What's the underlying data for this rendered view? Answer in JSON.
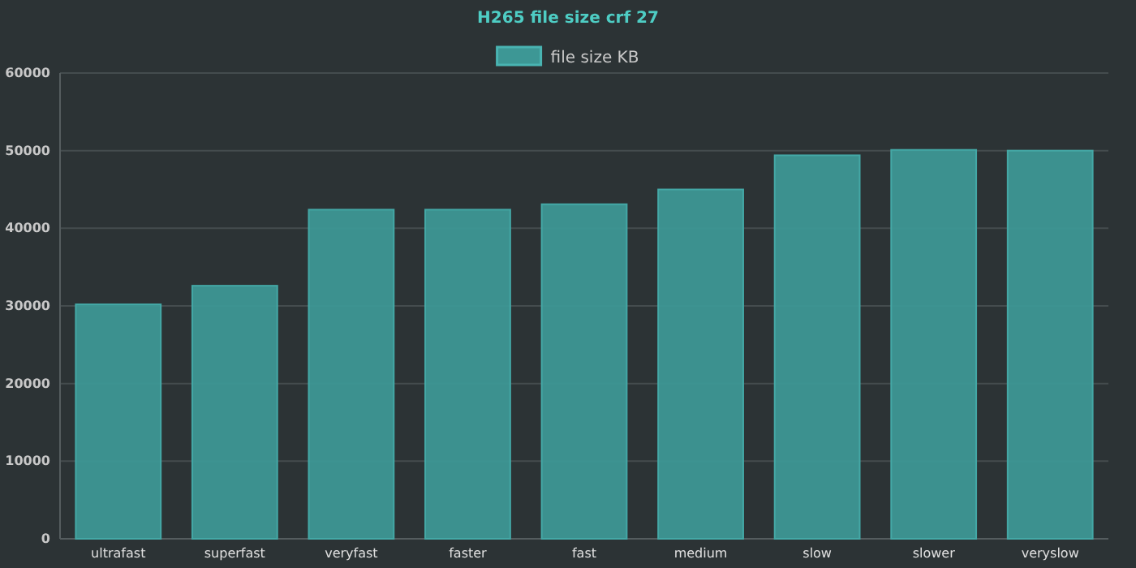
{
  "chart_data": {
    "type": "bar",
    "title": "H265 file size crf 27",
    "categories": [
      "ultrafast",
      "superfast",
      "veryfast",
      "faster",
      "fast",
      "medium",
      "slow",
      "slower",
      "veryslow"
    ],
    "series": [
      {
        "name": "file size KB",
        "color": "#3d9795",
        "values": [
          30200,
          32600,
          42400,
          42400,
          43100,
          45000,
          49400,
          50100,
          50000
        ]
      }
    ],
    "ylim": [
      0,
      60000
    ],
    "yticks": [
      0,
      10000,
      20000,
      30000,
      40000,
      50000,
      60000
    ],
    "grid": "y",
    "legend": "top"
  }
}
